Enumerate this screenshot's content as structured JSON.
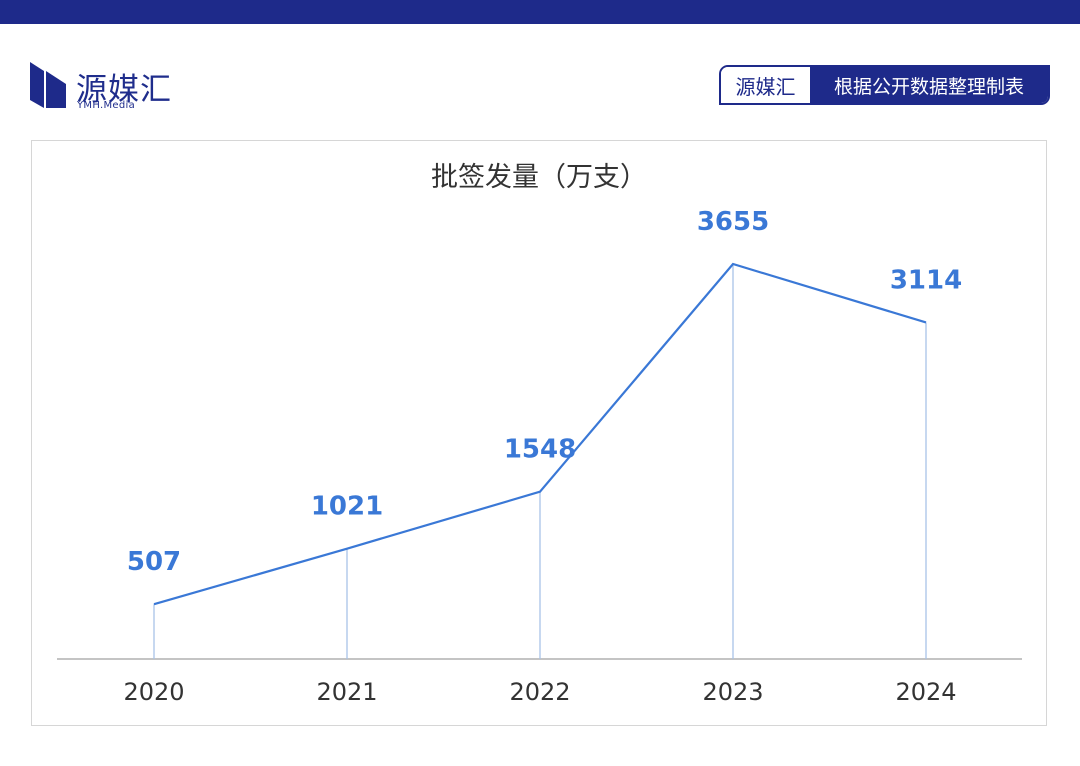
{
  "logo": {
    "name": "源媒汇",
    "subtitle": "YMH.Media"
  },
  "source_tag": {
    "brand": "源媒汇",
    "description": "根据公开数据整理制表"
  },
  "colors": {
    "brand": "#1e2a8a",
    "line": "#3a78d6",
    "label": "#3a78d6",
    "axis_text": "#333333"
  },
  "chart_data": {
    "type": "line",
    "title": "批签发量（万支）",
    "categories": [
      "2020",
      "2021",
      "2022",
      "2023",
      "2024"
    ],
    "values": [
      507,
      1021,
      1548,
      3655,
      3114
    ],
    "value_labels": [
      "507",
      "1021",
      "1548",
      "3655",
      "3114"
    ],
    "drop_lines": true,
    "grid": false,
    "legend": "none"
  }
}
